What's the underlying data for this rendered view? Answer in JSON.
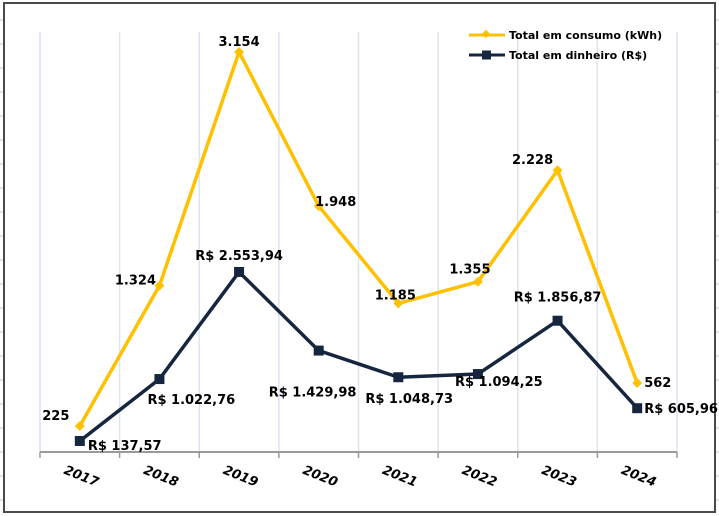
{
  "chart_data": {
    "type": "line",
    "title": "",
    "xlabel": "",
    "ylabel": "",
    "grid": "vertical",
    "legend_position": "top-right",
    "categories": [
      "2017",
      "2018",
      "2019",
      "2020",
      "2021",
      "2022",
      "2023",
      "2024"
    ],
    "series": [
      {
        "name": "Total em consumo (kWh)",
        "color": "#FFC000",
        "marker": "diamond",
        "values": [
          225,
          1324,
          3154,
          1948,
          1185,
          1355,
          2228,
          562
        ],
        "labels": [
          "225",
          "1.324",
          "3.154",
          "1.948",
          "1.185",
          "1.355",
          "2.228",
          "562"
        ]
      },
      {
        "name": "Total em dinheiro (R$)",
        "color": "#17263F",
        "marker": "square",
        "values": [
          137.57,
          1022.76,
          2553.94,
          1429.98,
          1048.73,
          1094.25,
          1856.87,
          605.96
        ],
        "labels": [
          "R$ 137,57",
          "R$ 1.022,76",
          "R$ 2.553,94",
          "R$ 1.429,98",
          "R$ 1.048,73",
          "R$ 1.094,25",
          "R$ 1.856,87",
          "R$ 605,96"
        ]
      }
    ]
  }
}
